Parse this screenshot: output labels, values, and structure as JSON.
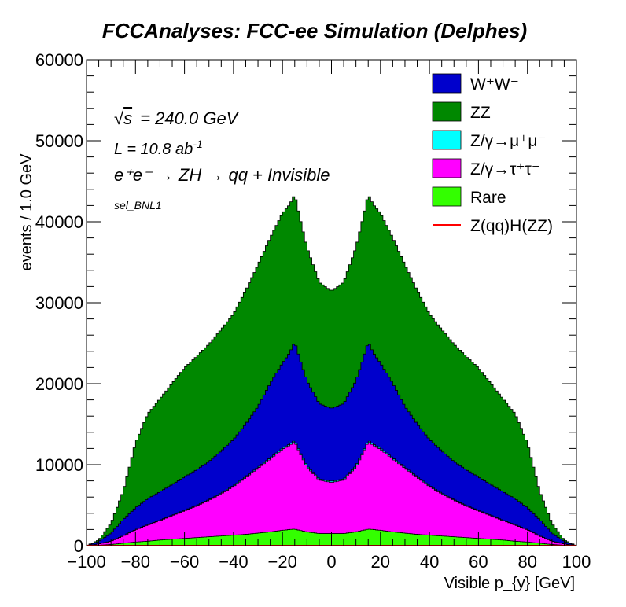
{
  "chart_data": {
    "type": "area",
    "title": "FCCAnalyses: FCC-ee Simulation (Delphes)",
    "xlabel": "Visible p_{y} [GeV]",
    "ylabel": "events / 1.0 GeV",
    "xlim": [
      -100,
      100
    ],
    "ylim": [
      0,
      60000
    ],
    "x_ticks": [
      -100,
      -80,
      -60,
      -40,
      -20,
      0,
      20,
      40,
      60,
      80,
      100
    ],
    "y_ticks": [
      0,
      10000,
      20000,
      30000,
      40000,
      50000,
      60000
    ],
    "stacked": true,
    "legend_position": "top-right",
    "annotations": {
      "sqrt_s": "= 240.0 GeV",
      "lumi": "L = 10.8 ab",
      "lumi_exp": "-1",
      "process": "e⁺e⁻ → ZH → qq + Invisible",
      "selection": "sel_BNL1"
    },
    "x": [
      -100,
      -95,
      -90,
      -85,
      -80,
      -75,
      -70,
      -65,
      -60,
      -55,
      -50,
      -45,
      -40,
      -35,
      -30,
      -25,
      -20,
      -17,
      -15,
      -13,
      -10,
      -5,
      0,
      5,
      10,
      13,
      15,
      17,
      20,
      25,
      30,
      35,
      40,
      45,
      50,
      55,
      60,
      65,
      70,
      75,
      80,
      85,
      90,
      95,
      100
    ],
    "series": [
      {
        "name": "Rare",
        "color": "#33ff00",
        "values": [
          0,
          50,
          150,
          300,
          450,
          550,
          700,
          800,
          900,
          1000,
          1100,
          1200,
          1300,
          1400,
          1550,
          1700,
          1900,
          2000,
          2050,
          1900,
          1700,
          1500,
          1500,
          1500,
          1700,
          1900,
          2050,
          2000,
          1900,
          1700,
          1550,
          1400,
          1300,
          1200,
          1100,
          1000,
          900,
          800,
          700,
          550,
          450,
          300,
          150,
          50,
          0
        ]
      },
      {
        "name": "Z/γ→τ⁺τ⁻",
        "color": "#ff00ff",
        "values": [
          0,
          150,
          400,
          900,
          1500,
          2000,
          2400,
          2900,
          3400,
          3900,
          4500,
          5200,
          6000,
          7000,
          8000,
          9000,
          10000,
          10400,
          10800,
          9600,
          8000,
          6600,
          6300,
          6600,
          8000,
          9600,
          10800,
          10400,
          10000,
          9000,
          8000,
          7000,
          6000,
          5200,
          4500,
          3900,
          3400,
          2900,
          2400,
          2000,
          1500,
          900,
          400,
          150,
          0
        ]
      },
      {
        "name": "Z/γ→μ⁺μ⁻",
        "color": "#00ffff",
        "values": [
          0,
          5,
          10,
          20,
          30,
          40,
          50,
          60,
          70,
          80,
          90,
          100,
          110,
          120,
          130,
          140,
          150,
          150,
          150,
          150,
          150,
          140,
          140,
          140,
          150,
          150,
          150,
          150,
          150,
          140,
          130,
          120,
          110,
          100,
          90,
          80,
          70,
          60,
          50,
          40,
          30,
          20,
          10,
          5,
          0
        ]
      },
      {
        "name": "W⁺W⁻",
        "color": "#0000cc",
        "values": [
          0,
          300,
          1000,
          2000,
          2700,
          3200,
          3500,
          3800,
          4100,
          4400,
          4700,
          5200,
          5700,
          6500,
          7500,
          9200,
          10500,
          11300,
          12200,
          11500,
          10500,
          9300,
          9000,
          9300,
          10500,
          11500,
          12200,
          11300,
          10500,
          9200,
          7500,
          6500,
          5700,
          5200,
          4700,
          4400,
          4100,
          3800,
          3500,
          3200,
          2700,
          2000,
          1000,
          300,
          0
        ]
      },
      {
        "name": "ZZ",
        "color": "#008800",
        "values": [
          0,
          200,
          1200,
          3500,
          8000,
          10500,
          11500,
          12500,
          13500,
          14000,
          14500,
          15000,
          15500,
          16500,
          17500,
          18000,
          18500,
          18300,
          18200,
          17500,
          16500,
          15000,
          14500,
          15000,
          16500,
          17500,
          18200,
          18300,
          18500,
          18000,
          17500,
          16500,
          15500,
          15000,
          14500,
          14000,
          13500,
          12500,
          11500,
          10500,
          8000,
          3500,
          1200,
          200,
          0
        ]
      },
      {
        "name": "Z(qq)H(ZZ)",
        "color": "#ff0000",
        "style": "line",
        "values": [
          0,
          0,
          0,
          0,
          0,
          0,
          0,
          0,
          0,
          0,
          0,
          0,
          0,
          0,
          0,
          0,
          0,
          0,
          0,
          0,
          0,
          0,
          0,
          0,
          0,
          0,
          0,
          0,
          0,
          0,
          0,
          0,
          0,
          0,
          0,
          0,
          0,
          0,
          0,
          0,
          0,
          0,
          0,
          0,
          0
        ]
      }
    ],
    "legend_order": [
      "W⁺W⁻",
      "ZZ",
      "Z/γ→μ⁺μ⁻",
      "Z/γ→τ⁺τ⁻",
      "Rare",
      "Z(qq)H(ZZ)"
    ]
  }
}
